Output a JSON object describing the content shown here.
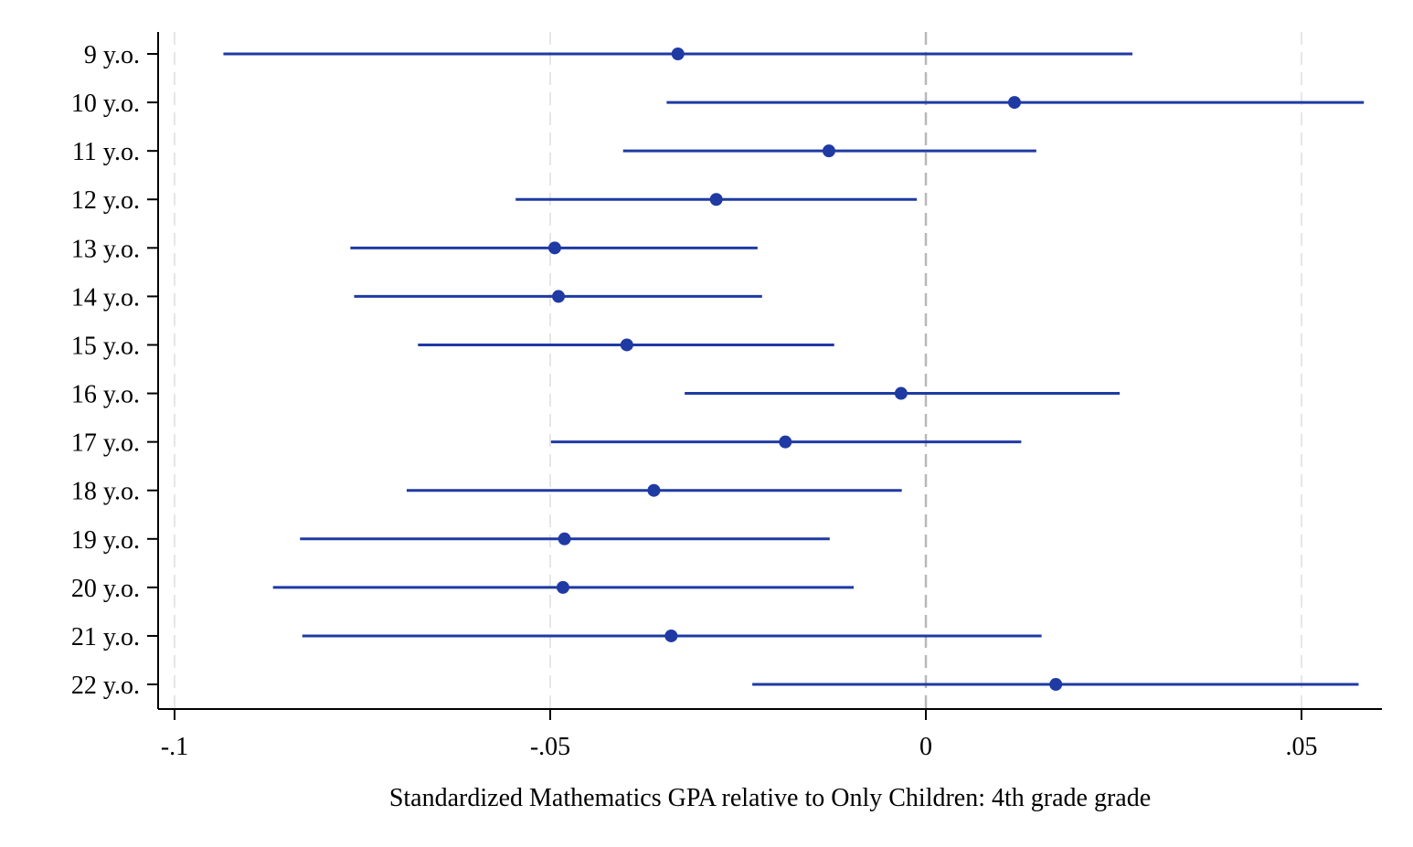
{
  "chart_data": {
    "type": "scatter",
    "subtype": "coefficient plot with confidence intervals",
    "title": "",
    "xlabel": "Standardized Mathematics GPA relative to Only Children: 4th grade grade",
    "ylabel": "",
    "xlim": [
      -0.102,
      0.061
    ],
    "x_ticks": [
      -0.1,
      -0.05,
      0,
      0.05
    ],
    "x_tick_labels": [
      "-.1",
      "-.05",
      "0",
      ".05"
    ],
    "grid": "vertical dashed lines at x ticks",
    "reference_line": 0,
    "legend": "none",
    "colors": {
      "series": "#1f3aa3",
      "grid": "#e6e6e6",
      "reference": "#b8b8b8",
      "axis": "#000000"
    },
    "categories": [
      "9 y.o.",
      "10 y.o.",
      "11 y.o.",
      "12 y.o.",
      "13 y.o.",
      "14 y.o.",
      "15 y.o.",
      "16 y.o.",
      "17 y.o.",
      "18 y.o.",
      "19 y.o.",
      "20 y.o.",
      "21 y.o.",
      "22 y.o."
    ],
    "estimates": [
      -0.033,
      0.0118,
      -0.0129,
      -0.0279,
      -0.0494,
      -0.0489,
      -0.0398,
      -0.0033,
      -0.0187,
      -0.0362,
      -0.0481,
      -0.0483,
      -0.0339,
      0.0173
    ],
    "ci_low": [
      -0.0935,
      -0.0345,
      -0.0403,
      -0.0546,
      -0.0766,
      -0.0761,
      -0.0676,
      -0.0321,
      -0.0499,
      -0.0691,
      -0.0833,
      -0.0869,
      -0.083,
      -0.0231
    ],
    "ci_high": [
      0.0275,
      0.0583,
      0.0147,
      -0.0012,
      -0.0224,
      -0.0218,
      -0.0122,
      0.0258,
      0.0127,
      -0.0032,
      -0.0128,
      -0.0096,
      0.0154,
      0.0576
    ]
  }
}
